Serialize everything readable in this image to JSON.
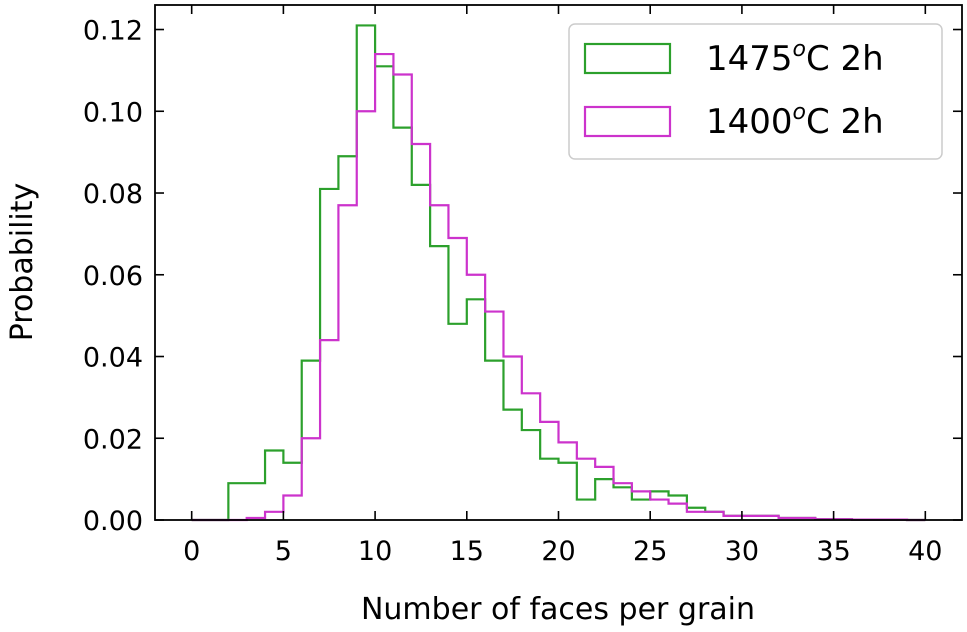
{
  "chart_data": {
    "type": "histogram",
    "xlabel": "Number of faces per grain",
    "ylabel": "Probability",
    "xlim": [
      -2,
      42
    ],
    "ylim": [
      0,
      0.126
    ],
    "x_ticks": [
      "0",
      "5",
      "10",
      "15",
      "20",
      "25",
      "30",
      "35",
      "40"
    ],
    "x_tick_values": [
      0,
      5,
      10,
      15,
      20,
      25,
      30,
      35,
      40
    ],
    "y_ticks": [
      "0.00",
      "0.02",
      "0.04",
      "0.06",
      "0.08",
      "0.10",
      "0.12"
    ],
    "y_tick_values": [
      0.0,
      0.02,
      0.04,
      0.06,
      0.08,
      0.1,
      0.12
    ],
    "legend_position": "top-right",
    "bin_edges": [
      0,
      1,
      2,
      3,
      4,
      5,
      6,
      7,
      8,
      9,
      10,
      11,
      12,
      13,
      14,
      15,
      16,
      17,
      18,
      19,
      20,
      21,
      22,
      23,
      24,
      25,
      26,
      27,
      28,
      29,
      30,
      31,
      32,
      33,
      34,
      35,
      36,
      37,
      38,
      39,
      40
    ],
    "series": [
      {
        "name": "1475",
        "name_sup": "o",
        "name_suffix": "C 2h",
        "color": "#2ca02c",
        "values": [
          0,
          0,
          0.009,
          0.009,
          0.017,
          0.014,
          0.039,
          0.081,
          0.089,
          0.121,
          0.111,
          0.096,
          0.082,
          0.067,
          0.048,
          0.054,
          0.039,
          0.027,
          0.022,
          0.015,
          0.014,
          0.005,
          0.01,
          0.008,
          0.005,
          0.007,
          0.006,
          0.003,
          0.002,
          0.001,
          0.001,
          0.001,
          0.0005,
          0.0005,
          0.0002,
          0.0002,
          0.0001,
          0.0001,
          0.0001,
          0
        ]
      },
      {
        "name": "1400",
        "name_sup": "o",
        "name_suffix": "C 2h",
        "color": "#cc33cc",
        "values": [
          0,
          0,
          0,
          0.0005,
          0.002,
          0.006,
          0.02,
          0.044,
          0.077,
          0.1,
          0.114,
          0.109,
          0.092,
          0.077,
          0.069,
          0.06,
          0.051,
          0.04,
          0.031,
          0.024,
          0.019,
          0.015,
          0.013,
          0.009,
          0.007,
          0.005,
          0.004,
          0.002,
          0.002,
          0.001,
          0.001,
          0.001,
          0.0005,
          0.0005,
          0.0002,
          0.0002,
          0.0001,
          0.0001,
          0.0001,
          0
        ]
      }
    ]
  }
}
